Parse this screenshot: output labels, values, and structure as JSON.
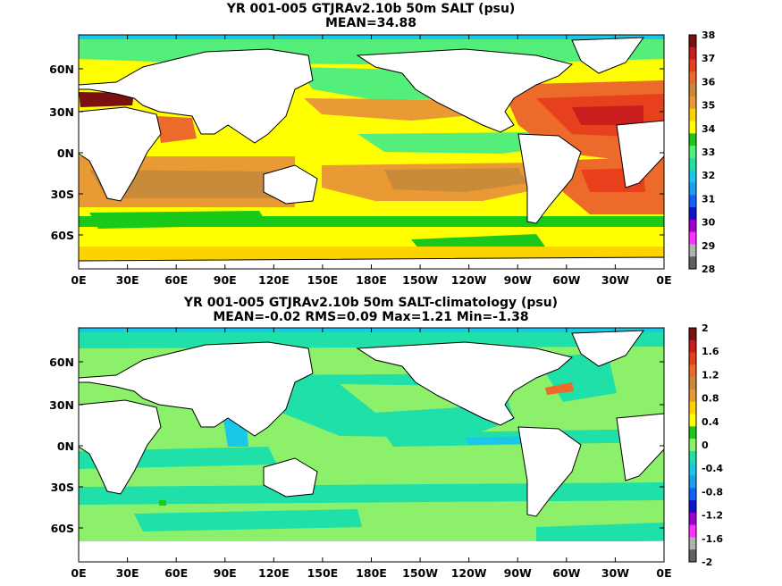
{
  "panels": [
    {
      "title": "YR 001-005 GTJRAv2.10b 50m SALT (psu)",
      "subtitle": "MEAN=34.88",
      "colorbar": {
        "labels": [
          "38",
          "37",
          "36",
          "35",
          "34",
          "33",
          "32",
          "31",
          "30",
          "29",
          "28"
        ],
        "colors": [
          "#7a1010",
          "#c81e1e",
          "#e8401c",
          "#ec6a2a",
          "#c98a3a",
          "#e99a34",
          "#fbd300",
          "#ffff00",
          "#19c919",
          "#53ef7a",
          "#1fe0a8",
          "#19c8e8",
          "#1aa0f0",
          "#1460ff",
          "#1010d0",
          "#a000d0",
          "#ff30ff",
          "#b0b0b0",
          "#606060"
        ]
      },
      "x_ticks": [
        "0E",
        "30E",
        "60E",
        "90E",
        "120E",
        "150E",
        "180E",
        "150W",
        "120W",
        "90W",
        "60W",
        "30W",
        "0E"
      ],
      "y_ticks": [
        "60N",
        "30N",
        "0N",
        "30S",
        "60S"
      ]
    },
    {
      "title": "YR 001-005 GTJRAv2.10b 50m SALT-climatology (psu)",
      "subtitle": "MEAN=-0.02   RMS=0.09   Max=1.21   Min=-1.38",
      "colorbar": {
        "labels": [
          "2",
          "1.6",
          "1.2",
          "0.8",
          "0.4",
          "0",
          "-0.4",
          "-0.8",
          "-1.2",
          "-1.6",
          "-2"
        ],
        "colors": [
          "#7a1010",
          "#c81e1e",
          "#e8401c",
          "#ec6a2a",
          "#c98a3a",
          "#e99a34",
          "#fbd300",
          "#ffff00",
          "#19c919",
          "#8cf06a",
          "#1fe0a8",
          "#19c8e8",
          "#1aa0f0",
          "#1460ff",
          "#1010d0",
          "#a000d0",
          "#ff30ff",
          "#b0b0b0",
          "#606060"
        ]
      },
      "x_ticks": [
        "0E",
        "30E",
        "60E",
        "90E",
        "120E",
        "150E",
        "180E",
        "150W",
        "120W",
        "90W",
        "60W",
        "30W",
        "0E"
      ],
      "y_ticks": [
        "60N",
        "30N",
        "0N",
        "30S",
        "60S"
      ]
    }
  ]
}
